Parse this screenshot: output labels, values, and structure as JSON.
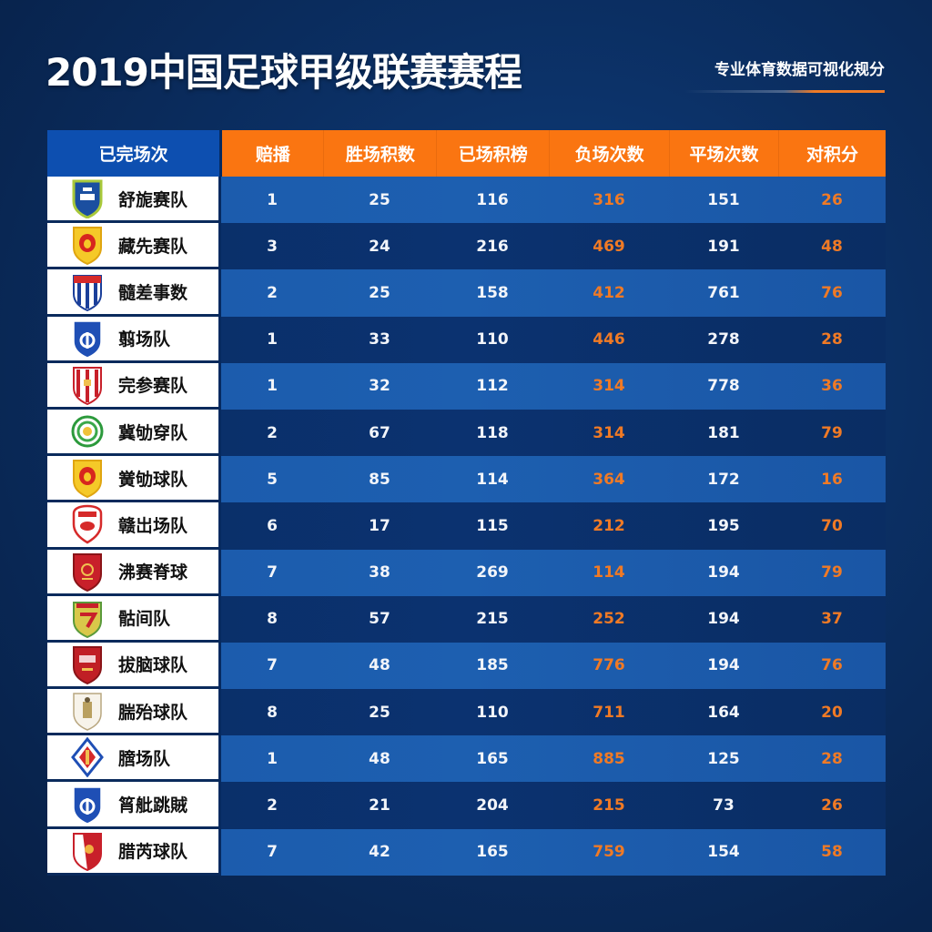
{
  "header": {
    "title": "2019中国足球甲级联赛赛程",
    "subtitle": "专业体育数据可视化规分"
  },
  "colors": {
    "background": "#0b2f63",
    "header_orange": "#fa7511",
    "header_blue": "#0d4fb0",
    "value_orange": "#f07a25",
    "value_white": "#f2f5fa",
    "row_light": "#1d5fb0",
    "row_dark": "#0b3270"
  },
  "table": {
    "columns": [
      {
        "label": "已完场次"
      },
      {
        "label": "赔播"
      },
      {
        "label": "胜场积数"
      },
      {
        "label": "已场积榜"
      },
      {
        "label": "负场次数"
      },
      {
        "label": "平场次数"
      },
      {
        "label": "对积分"
      }
    ],
    "rows": [
      {
        "team": "舒旎赛队",
        "badge": "blue-green-shield",
        "c1": "1",
        "c2": "25",
        "c3": "116",
        "c4": "316",
        "c5": "151",
        "c6": "26"
      },
      {
        "team": "藏先赛队",
        "badge": "yellow-red-shield",
        "c1": "3",
        "c2": "24",
        "c3": "216",
        "c4": "469",
        "c5": "191",
        "c6": "48"
      },
      {
        "team": "髓差事数",
        "badge": "blue-white-striped-shield",
        "c1": "2",
        "c2": "25",
        "c3": "158",
        "c4": "412",
        "c5": "761",
        "c6": "76"
      },
      {
        "team": "翦场队",
        "badge": "blue-emblem-shield",
        "c1": "1",
        "c2": "33",
        "c3": "110",
        "c4": "446",
        "c5": "278",
        "c6": "28"
      },
      {
        "team": "完参赛队",
        "badge": "red-white-striped-shield",
        "c1": "1",
        "c2": "32",
        "c3": "112",
        "c4": "314",
        "c5": "778",
        "c6": "36"
      },
      {
        "team": "冀劬穿队",
        "badge": "green-circle-crest",
        "c1": "2",
        "c2": "67",
        "c3": "118",
        "c4": "314",
        "c5": "181",
        "c6": "79"
      },
      {
        "team": "黉劬球队",
        "badge": "yellow-red-shield",
        "c1": "5",
        "c2": "85",
        "c3": "114",
        "c4": "364",
        "c5": "172",
        "c6": "16"
      },
      {
        "team": "赣岀场队",
        "badge": "red-white-crest",
        "c1": "6",
        "c2": "17",
        "c3": "115",
        "c4": "212",
        "c5": "195",
        "c6": "70"
      },
      {
        "team": "沸赛脊球",
        "badge": "red-dragon-shield",
        "c1": "7",
        "c2": "38",
        "c3": "269",
        "c4": "114",
        "c5": "194",
        "c6": "79"
      },
      {
        "team": "骷间队",
        "badge": "yellow-green-shield",
        "c1": "8",
        "c2": "57",
        "c3": "215",
        "c4": "252",
        "c5": "194",
        "c6": "37"
      },
      {
        "team": "拔脑球队",
        "badge": "dark-red-shield",
        "c1": "7",
        "c2": "48",
        "c3": "185",
        "c4": "776",
        "c5": "194",
        "c6": "76"
      },
      {
        "team": "腨殆球队",
        "badge": "white-gold-shield",
        "c1": "8",
        "c2": "25",
        "c3": "110",
        "c4": "711",
        "c5": "164",
        "c6": "20"
      },
      {
        "team": "膪场队",
        "badge": "blue-diamond-crest",
        "c1": "1",
        "c2": "48",
        "c3": "165",
        "c4": "885",
        "c5": "125",
        "c6": "28"
      },
      {
        "team": "筲舭跳賊",
        "badge": "blue-emblem-shield",
        "c1": "2",
        "c2": "21",
        "c3": "204",
        "c4": "215",
        "c5": "73",
        "c6": "26"
      },
      {
        "team": "腊芮球队",
        "badge": "red-white-half-shield",
        "c1": "7",
        "c2": "42",
        "c3": "165",
        "c4": "759",
        "c5": "154",
        "c6": "58"
      }
    ]
  }
}
